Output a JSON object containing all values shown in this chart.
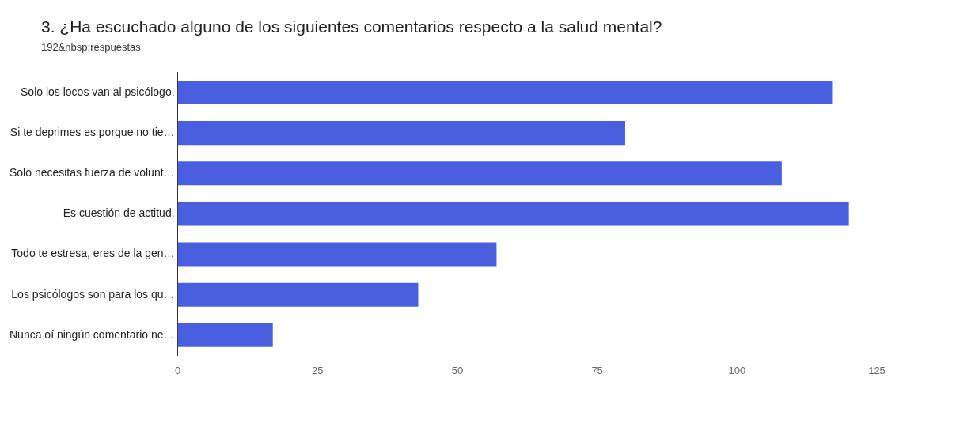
{
  "chart_data": {
    "type": "bar",
    "orientation": "horizontal",
    "title": "3. ¿Ha escuchado alguno de los siguientes comentarios respecto a la salud mental?",
    "subtitle": "192&nbsp;respuestas",
    "categories": [
      "Solo los locos van al psicólogo.",
      "Si te deprimes es porque no tie…",
      "Solo necesitas fuerza de volunt…",
      "Es cuestión de actitud.",
      "Todo te estresa, eres de la gen…",
      "Los psicólogos son para los qu…",
      "Nunca oí ningún comentario ne…"
    ],
    "values": [
      117,
      80,
      108,
      120,
      57,
      43,
      17
    ],
    "color": "#4a5fe0",
    "xlim": [
      0,
      125
    ],
    "xticks": [
      0,
      25,
      50,
      75,
      100,
      125
    ],
    "grid": false,
    "legend": false
  }
}
